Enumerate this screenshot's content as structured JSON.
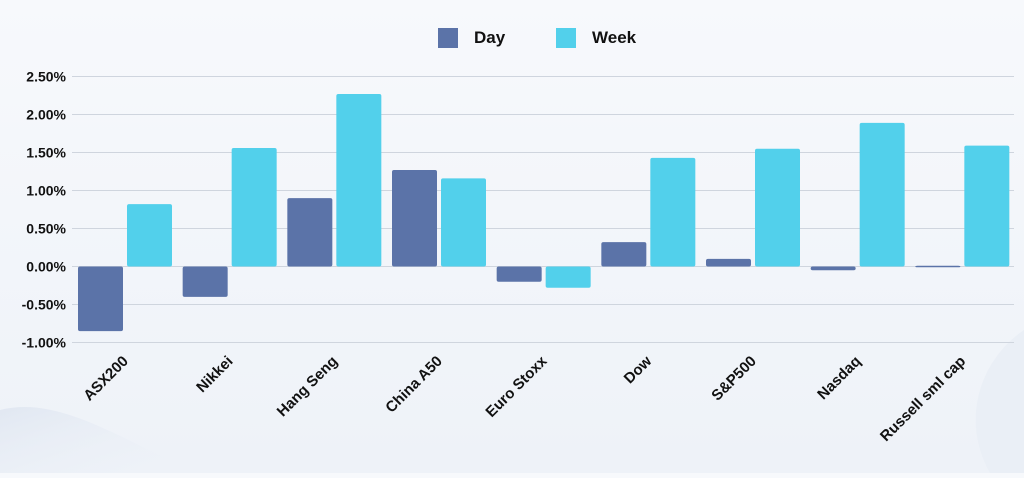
{
  "chart_data": {
    "type": "bar",
    "title": "",
    "xlabel": "",
    "ylabel": "",
    "categories": [
      "ASX200",
      "Nikkei",
      "Hang Seng",
      "China A50",
      "Euro Stoxx",
      "Dow",
      "S&P500",
      "Nasdaq",
      "Russell sml cap"
    ],
    "series": [
      {
        "name": "Day",
        "color": "#5b73a8",
        "values": [
          -0.85,
          -0.4,
          0.9,
          1.27,
          -0.2,
          0.32,
          0.1,
          -0.05,
          0.01
        ]
      },
      {
        "name": "Week",
        "color": "#52d0eb",
        "values": [
          0.82,
          1.56,
          2.27,
          1.16,
          -0.28,
          1.43,
          1.55,
          1.89,
          1.59
        ]
      }
    ],
    "ylim": [
      -1.0,
      2.5
    ],
    "yticks": [
      -1.0,
      -0.5,
      0.0,
      0.5,
      1.0,
      1.5,
      2.0,
      2.5
    ],
    "ytick_labels": [
      "-1.00%",
      "-0.50%",
      "0.00%",
      "0.50%",
      "1.00%",
      "1.50%",
      "2.00%",
      "2.50%"
    ],
    "grid": true,
    "legend_position": "top-center"
  }
}
